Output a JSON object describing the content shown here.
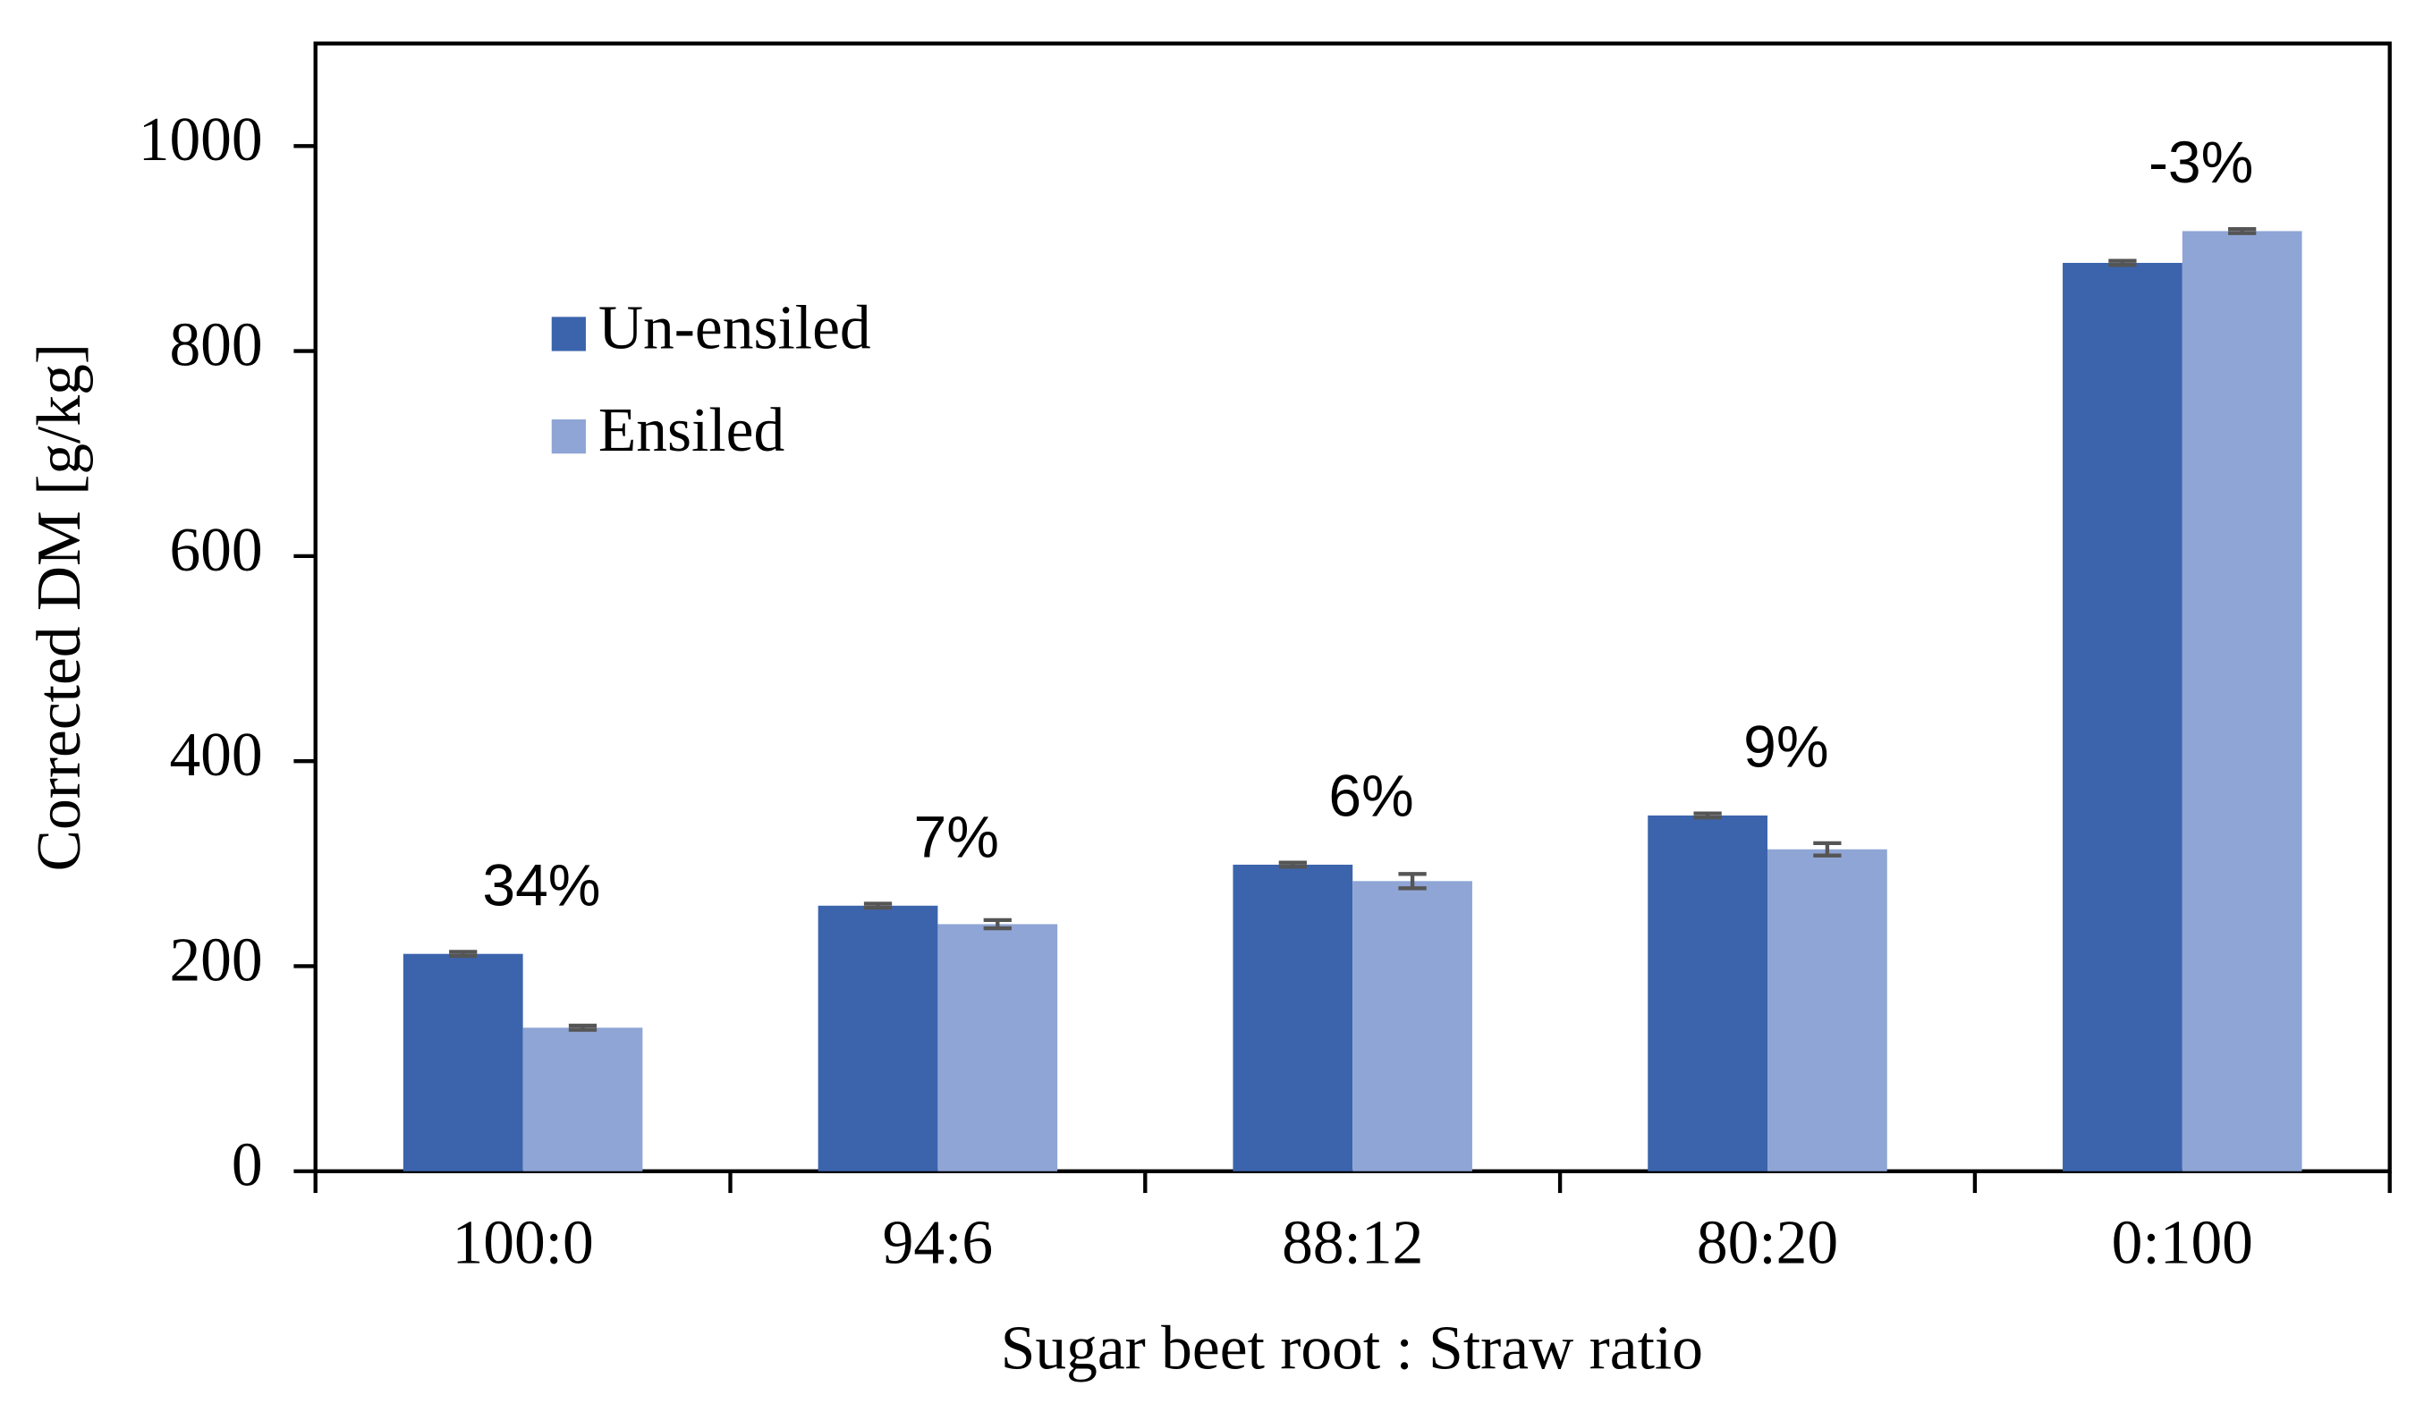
{
  "chart_data": {
    "type": "bar",
    "x_label": "Sugar beet root : Straw ratio",
    "y_label": "Corrected DM [g/kg]",
    "categories": [
      "100:0",
      "94:6",
      "88:12",
      "80:20",
      "0:100"
    ],
    "series": [
      {
        "name": "Un-ensiled",
        "color": "#3c64ad",
        "values": [
          212,
          259,
          299,
          347,
          886
        ],
        "errors": [
          2,
          2,
          2,
          2,
          2
        ]
      },
      {
        "name": "Ensiled",
        "color": "#8fa5d5",
        "values": [
          140,
          241,
          283,
          314,
          917
        ],
        "errors": [
          2,
          4,
          7,
          6,
          2
        ]
      }
    ],
    "annotations": [
      "34%",
      "7%",
      "6%",
      "9%",
      "-3%"
    ],
    "ylim": [
      0,
      1100
    ],
    "yticks": [
      0,
      200,
      400,
      600,
      800,
      1000
    ],
    "legend": "upper left",
    "grid": false
  }
}
